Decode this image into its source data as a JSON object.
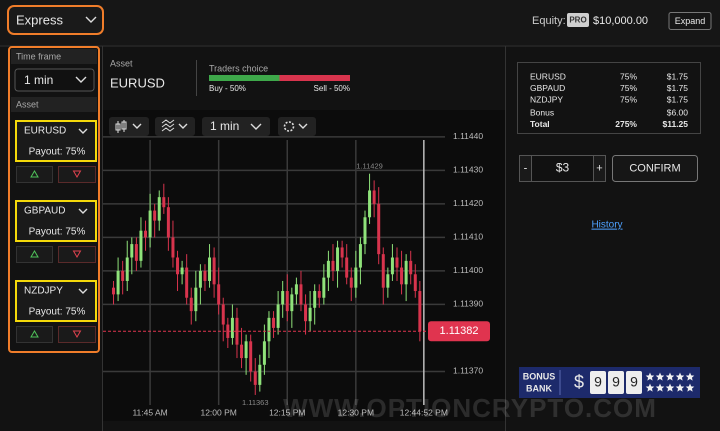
{
  "header": {
    "mode": "Express",
    "equity_label": "Equity:",
    "badge": "PRO",
    "equity": "$10,000.00",
    "expand": "Expand"
  },
  "sidebar": {
    "time_frame_label": "Time frame",
    "time_frame": "1 min",
    "asset_label": "Asset",
    "assets": [
      {
        "name": "EURUSD",
        "payout": "Payout: 75%"
      },
      {
        "name": "GBPAUD",
        "payout": "Payout: 75%"
      },
      {
        "name": "NZDJPY",
        "payout": "Payout: 75%"
      }
    ]
  },
  "asset_panel": {
    "label": "Asset",
    "name": "EURUSD",
    "traders_choice": "Traders choice",
    "buy": "Buy - 50%",
    "sell": "Sell - 50%",
    "buy_share": 50,
    "sell_share": 50
  },
  "toolbar": {
    "interval": "1 min"
  },
  "chart_data": {
    "type": "candlestick",
    "x": [
      -8,
      -7,
      -6,
      -5,
      -4,
      -3,
      -2,
      -1,
      0,
      1,
      2,
      3,
      4,
      5,
      6,
      7,
      8,
      9,
      10,
      11,
      12,
      13,
      14,
      15,
      16,
      17,
      18,
      19,
      20,
      21,
      22,
      23,
      24,
      25,
      26,
      27,
      28,
      29,
      30,
      31,
      32,
      33,
      34,
      35,
      36,
      37,
      38,
      39,
      40,
      41,
      42,
      43,
      44,
      45,
      46,
      47,
      48,
      49,
      50,
      51,
      52,
      53,
      54,
      55,
      56,
      57,
      58,
      59
    ],
    "open": [
      1.11395,
      1.11393,
      1.114,
      1.11397,
      1.11404,
      1.11408,
      1.11403,
      1.11412,
      1.1141,
      1.11418,
      1.11415,
      1.11422,
      1.11419,
      1.1141,
      1.11404,
      1.11399,
      1.11401,
      1.11392,
      1.11388,
      1.11395,
      1.114,
      1.11397,
      1.11404,
      1.11396,
      1.1139,
      1.11384,
      1.1138,
      1.11386,
      1.11378,
      1.11374,
      1.11379,
      1.1137,
      1.11366,
      1.11372,
      1.11379,
      1.11386,
      1.11383,
      1.1139,
      1.11394,
      1.11388,
      1.11393,
      1.11396,
      1.1139,
      1.11385,
      1.11389,
      1.11394,
      1.11392,
      1.11398,
      1.11403,
      1.114,
      1.11407,
      1.11404,
      1.11398,
      1.11395,
      1.11401,
      1.11408,
      1.11416,
      1.11424,
      1.1142,
      1.11405,
      1.11395,
      1.11399,
      1.11404,
      1.11401,
      1.11396,
      1.11403,
      1.11399,
      1.11394
    ],
    "close": [
      1.11393,
      1.114,
      1.11397,
      1.11404,
      1.11408,
      1.11403,
      1.11412,
      1.1141,
      1.11418,
      1.11415,
      1.11422,
      1.11419,
      1.1141,
      1.11404,
      1.11399,
      1.11401,
      1.11392,
      1.11388,
      1.11395,
      1.114,
      1.11397,
      1.11404,
      1.11396,
      1.1139,
      1.11384,
      1.1138,
      1.11386,
      1.11378,
      1.11374,
      1.11379,
      1.1137,
      1.11366,
      1.11372,
      1.11379,
      1.11386,
      1.11383,
      1.1139,
      1.11394,
      1.11388,
      1.11393,
      1.11396,
      1.1139,
      1.11385,
      1.11389,
      1.11394,
      1.11392,
      1.11398,
      1.11403,
      1.114,
      1.11407,
      1.11404,
      1.11398,
      1.11395,
      1.11401,
      1.11408,
      1.11416,
      1.11424,
      1.1142,
      1.11405,
      1.11395,
      1.11399,
      1.11404,
      1.11401,
      1.11396,
      1.11403,
      1.11399,
      1.11394,
      1.11382
    ],
    "low": [
      1.1139,
      1.11391,
      1.11393,
      1.11394,
      1.11399,
      1.114,
      1.11401,
      1.11406,
      1.11407,
      1.1141,
      1.11412,
      1.11417,
      1.11406,
      1.11401,
      1.11394,
      1.11396,
      1.1139,
      1.11384,
      1.11385,
      1.1139,
      1.11394,
      1.11395,
      1.11392,
      1.11387,
      1.11379,
      1.11377,
      1.11378,
      1.11374,
      1.11371,
      1.11369,
      1.11367,
      1.11363,
      1.11364,
      1.11369,
      1.11374,
      1.1138,
      1.11381,
      1.11386,
      1.11385,
      1.11383,
      1.1139,
      1.11388,
      1.11381,
      1.11382,
      1.11384,
      1.11389,
      1.1139,
      1.11394,
      1.11397,
      1.11395,
      1.11401,
      1.11396,
      1.11391,
      1.11392,
      1.11396,
      1.11405,
      1.11414,
      1.11416,
      1.11402,
      1.1139,
      1.11392,
      1.11397,
      1.11397,
      1.11393,
      1.11391,
      1.11396,
      1.11392,
      1.11379
    ],
    "high": [
      1.11397,
      1.11404,
      1.11403,
      1.11409,
      1.1141,
      1.1141,
      1.11416,
      1.11415,
      1.11423,
      1.1142,
      1.11424,
      1.11426,
      1.11422,
      1.11415,
      1.11406,
      1.11403,
      1.11405,
      1.11395,
      1.114,
      1.11402,
      1.11402,
      1.11408,
      1.11407,
      1.11401,
      1.11392,
      1.11386,
      1.1139,
      1.11389,
      1.11383,
      1.11381,
      1.11381,
      1.11374,
      1.11375,
      1.11384,
      1.11388,
      1.11388,
      1.11394,
      1.11397,
      1.11399,
      1.11395,
      1.11398,
      1.114,
      1.11393,
      1.11394,
      1.11396,
      1.11396,
      1.11402,
      1.11406,
      1.11408,
      1.11409,
      1.11409,
      1.11408,
      1.11401,
      1.11406,
      1.1141,
      1.11418,
      1.11429,
      1.11427,
      1.11425,
      1.11407,
      1.11401,
      1.11408,
      1.11407,
      1.11406,
      1.11405,
      1.11406,
      1.11402,
      1.11397
    ],
    "xlim": [
      -10.3,
      64.5
    ],
    "xticks": [
      {
        "value": 0,
        "label": "11:45 AM"
      },
      {
        "value": 15,
        "label": "12:00 PM"
      },
      {
        "value": 30,
        "label": "12:15 PM"
      },
      {
        "value": 45,
        "label": "12:30 PM"
      },
      {
        "value": 59.87,
        "label": "12:44:52 PM"
      }
    ],
    "ylim": [
      1.1136,
      1.11448
    ],
    "yticks": [
      {
        "value": 1.1144,
        "label": "1.11440"
      },
      {
        "value": 1.1143,
        "label": "1.11430"
      },
      {
        "value": 1.1142,
        "label": "1.11420"
      },
      {
        "value": 1.1141,
        "label": "1.11410"
      },
      {
        "value": 1.114,
        "label": "1.11400"
      },
      {
        "value": 1.1139,
        "label": "1.11390"
      },
      {
        "value": 1.1137,
        "label": "1.11370"
      }
    ],
    "current_price": {
      "value": 1.11382,
      "label": "1.11382"
    },
    "annotations": [
      {
        "value": 1.11429,
        "label": "1.11429"
      },
      {
        "value": 1.11363,
        "label": "1.11363"
      }
    ],
    "up_color": "#8fe27a",
    "down_color": "#d8344d",
    "grid": true
  },
  "summary": {
    "rows": [
      [
        "EURUSD",
        "75%",
        "$1.75"
      ],
      [
        "GBPAUD",
        "75%",
        "$1.75"
      ],
      [
        "NZDJPY",
        "75%",
        "$1.75"
      ],
      [
        "Bonus",
        "",
        "$6.00"
      ],
      [
        "Total",
        "275%",
        "$11.25"
      ]
    ]
  },
  "trade": {
    "minus": "-",
    "amount": "$3",
    "plus": "+",
    "confirm": "CONFIRM",
    "history": "History"
  },
  "ad": {
    "line1": "BONUS",
    "line2": "BANK",
    "currency": "$",
    "digits": [
      "9",
      "9",
      "9"
    ]
  },
  "watermark": "WWW.OPTIONCRYPTO.COM"
}
